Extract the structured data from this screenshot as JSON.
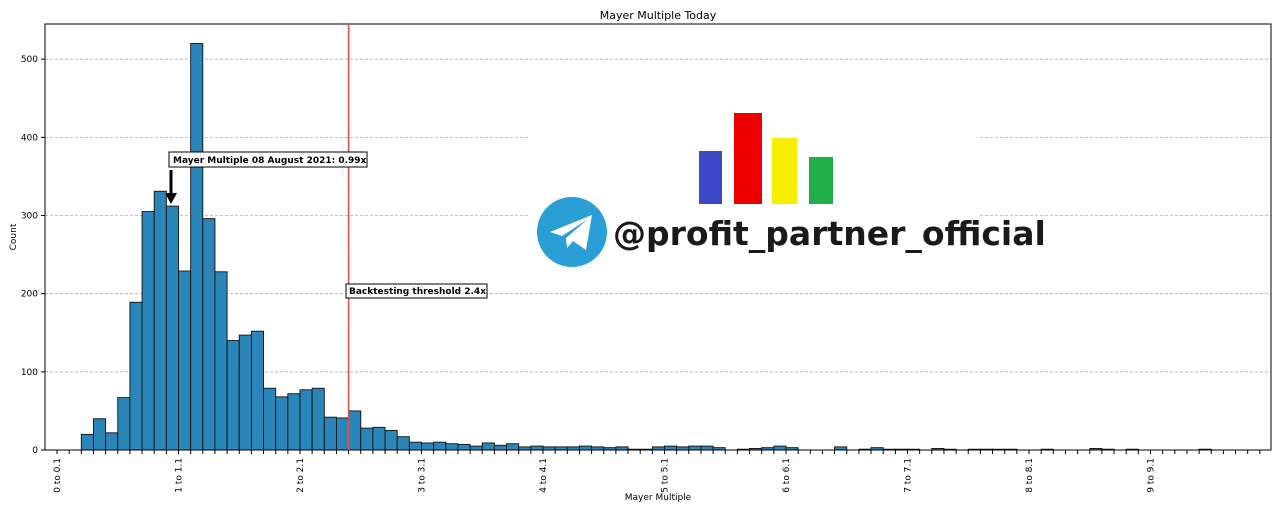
{
  "chart_data": {
    "type": "bar",
    "title": "Mayer Multiple Today",
    "xlabel": "Mayer Multiple",
    "ylabel": "Count",
    "ylim": [
      0,
      545
    ],
    "yticks": [
      0,
      100,
      200,
      300,
      400,
      500
    ],
    "grid": "horizontal dashed",
    "bin_width": 0.1,
    "x_range": [
      0,
      10
    ],
    "xtick_labels": [
      {
        "value": 0.0,
        "label": "0 to 0.1"
      },
      {
        "value": 1.0,
        "label": "1 to 1.1"
      },
      {
        "value": 2.0,
        "label": "2 to 2.1"
      },
      {
        "value": 3.0,
        "label": "3 to 3.1"
      },
      {
        "value": 4.0,
        "label": "4 to 4.1"
      },
      {
        "value": 5.0,
        "label": "5 to 5.1"
      },
      {
        "value": 6.0,
        "label": "6 to 6.1"
      },
      {
        "value": 7.0,
        "label": "7 to 7.1"
      },
      {
        "value": 8.0,
        "label": "8 to 8.1"
      },
      {
        "value": 9.0,
        "label": "9 to 9.1"
      }
    ],
    "values": [
      0,
      0,
      20,
      40,
      22,
      67,
      189,
      305,
      331,
      312,
      229,
      520,
      296,
      228,
      140,
      147,
      152,
      79,
      68,
      72,
      77,
      79,
      42,
      41,
      50,
      28,
      29,
      25,
      17,
      10,
      9,
      10,
      8,
      7,
      5,
      9,
      6,
      8,
      4,
      5,
      4,
      4,
      4,
      5,
      4,
      3,
      4,
      1,
      1,
      4,
      5,
      4,
      5,
      5,
      3,
      0,
      1,
      2,
      3,
      5,
      3,
      0,
      0,
      0,
      4,
      0,
      1,
      3,
      1,
      1,
      1,
      0,
      2,
      1,
      0,
      1,
      1,
      1,
      1,
      0,
      0,
      1,
      0,
      0,
      0,
      2,
      1,
      0,
      1,
      0,
      0,
      0,
      0,
      0,
      1,
      0,
      0,
      0,
      0,
      0
    ],
    "bar_color": "#2a86b8",
    "annotations": [
      {
        "label": "Mayer Multiple 08 August 2021: 0.99x",
        "value": 0.99,
        "count": 312
      },
      {
        "label": "Backtesting threshold 2.4x",
        "value": 2.4
      }
    ],
    "threshold": {
      "value": 2.4,
      "color": "#d9534f"
    }
  },
  "watermark": {
    "text": "@profit_partner_official",
    "icon": "telegram-icon",
    "logo_bars": [
      "#3b48c8",
      "#ee0000",
      "#f7ee00",
      "#1fae48"
    ]
  }
}
